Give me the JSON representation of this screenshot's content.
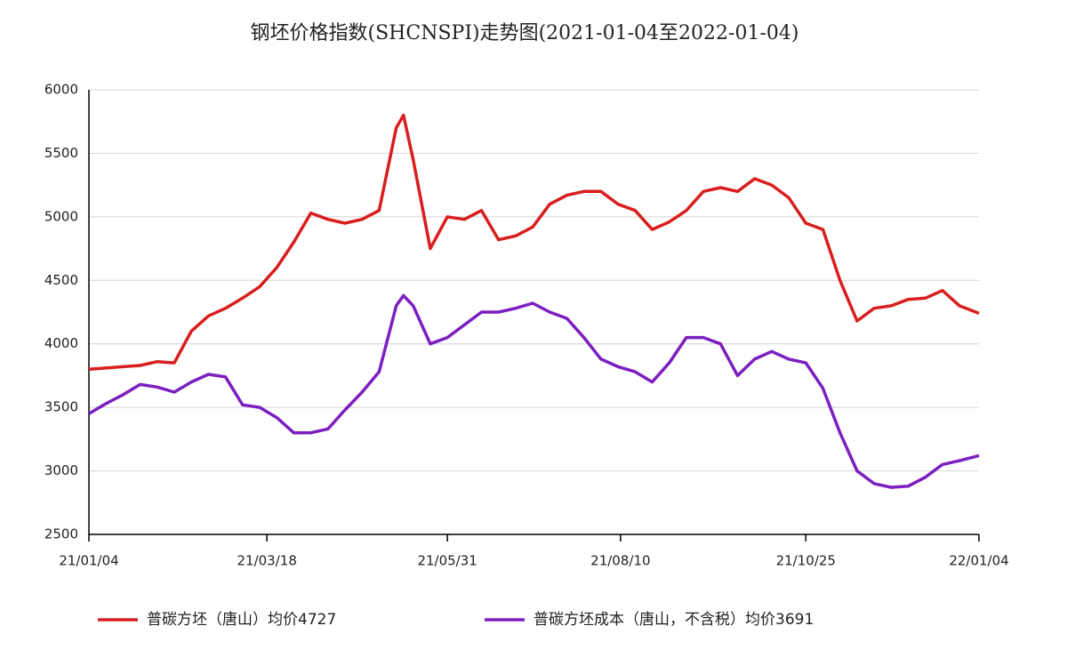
{
  "chart_data": {
    "type": "line",
    "title": "钢坯价格指数(SHCNSPI)走势图(2021-01-04至2022-01-04)",
    "x": [
      "21/01/04",
      "21/01/11",
      "21/01/18",
      "21/01/25",
      "21/02/01",
      "21/02/08",
      "21/02/15",
      "21/02/22",
      "21/03/01",
      "21/03/08",
      "21/03/15",
      "21/03/22",
      "21/03/29",
      "21/04/05",
      "21/04/12",
      "21/04/19",
      "21/04/26",
      "21/05/03",
      "21/05/10",
      "21/05/13",
      "21/05/17",
      "21/05/24",
      "21/05/31",
      "21/06/07",
      "21/06/14",
      "21/06/21",
      "21/06/28",
      "21/07/05",
      "21/07/12",
      "21/07/19",
      "21/07/26",
      "21/08/02",
      "21/08/09",
      "21/08/16",
      "21/08/23",
      "21/08/30",
      "21/09/06",
      "21/09/13",
      "21/09/20",
      "21/09/27",
      "21/10/04",
      "21/10/11",
      "21/10/18",
      "21/10/25",
      "21/11/01",
      "21/11/08",
      "21/11/15",
      "21/11/22",
      "21/11/29",
      "21/12/06",
      "21/12/13",
      "21/12/20",
      "21/12/27",
      "22/01/04"
    ],
    "series": [
      {
        "name": "普碳方坯（唐山）均价4727",
        "color": "#d81e1e",
        "values": [
          3800,
          3810,
          3820,
          3830,
          3860,
          3850,
          4100,
          4220,
          4280,
          4360,
          4450,
          4600,
          4800,
          5030,
          4980,
          4950,
          4980,
          5050,
          5700,
          5800,
          5450,
          4750,
          5000,
          4980,
          5050,
          4820,
          4850,
          4920,
          5100,
          5170,
          5200,
          5200,
          5100,
          5050,
          4900,
          4960,
          5050,
          5200,
          5230,
          5200,
          5300,
          5250,
          5150,
          4950,
          4900,
          4500,
          4180,
          4280,
          4300,
          4350,
          4360,
          4420,
          4300,
          4240
        ]
      },
      {
        "name": "普碳方坯成本（唐山，不含税）均价3691",
        "color": "#7b1fc0",
        "values": [
          3450,
          3530,
          3600,
          3680,
          3660,
          3620,
          3700,
          3760,
          3740,
          3520,
          3500,
          3420,
          3300,
          3300,
          3330,
          3480,
          3620,
          3780,
          4300,
          4380,
          4300,
          4000,
          4050,
          4150,
          4250,
          4250,
          4280,
          4320,
          4250,
          4200,
          4050,
          3880,
          3820,
          3780,
          3700,
          3850,
          4050,
          4050,
          4000,
          3750,
          3880,
          3940,
          3880,
          3850,
          3650,
          3300,
          3000,
          2900,
          2870,
          2880,
          2950,
          3050,
          3080,
          3120
        ]
      }
    ],
    "xlim": [
      "21/01/04",
      "22/01/04"
    ],
    "xticks": [
      "21/01/04",
      "21/03/18",
      "21/05/31",
      "21/08/10",
      "21/10/25",
      "22/01/04"
    ],
    "ylim": [
      2500,
      6000
    ],
    "yticks": [
      2500,
      3000,
      3500,
      4000,
      4500,
      5000,
      5500,
      6000
    ],
    "grid": true
  }
}
